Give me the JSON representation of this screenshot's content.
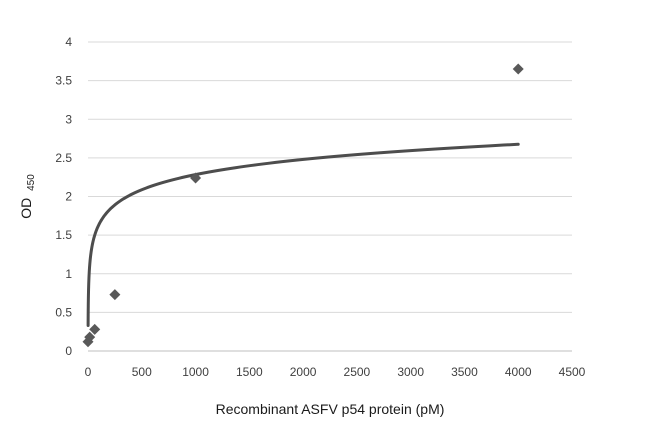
{
  "chart_data": {
    "type": "scatter",
    "title": "",
    "xlabel": "Recombinant ASFV p54 protein (pM)",
    "ylabel": "OD",
    "ylabel_subscript": "450",
    "xlim": [
      0,
      4500
    ],
    "ylim": [
      0,
      4
    ],
    "x_ticks": [
      0,
      500,
      1000,
      1500,
      2000,
      2500,
      3000,
      3500,
      4000,
      4500
    ],
    "y_ticks": [
      0,
      0.5,
      1,
      1.5,
      2,
      2.5,
      3,
      3.5,
      4
    ],
    "x_tick_labels": [
      "0",
      "500",
      "1000",
      "1500",
      "2000",
      "2500",
      "3000",
      "3500",
      "4000",
      "4500"
    ],
    "y_tick_labels": [
      "0",
      "0.5",
      "1",
      "1.5",
      "2",
      "2.5",
      "3",
      "3.5",
      "4"
    ],
    "grid": "horizontal",
    "legend": "none",
    "series": [
      {
        "marker": "diamond",
        "color": "#595959",
        "x": [
          0,
          15.6,
          62.5,
          250,
          1000,
          4000
        ],
        "y": [
          0.12,
          0.18,
          0.28,
          0.73,
          2.24,
          3.65
        ]
      }
    ],
    "trendline": {
      "type": "logarithmic",
      "color": "#4d4d4d",
      "x_range": [
        1,
        4000
      ],
      "a": 0.2828,
      "b": 0.3301
    }
  }
}
